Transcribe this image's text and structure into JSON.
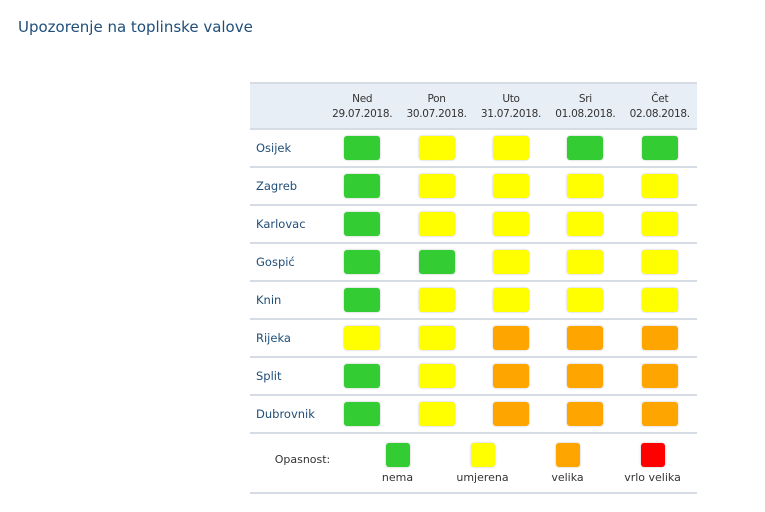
{
  "title": "Upozorenje na toplinske valove",
  "days": [
    {
      "name": "Ned",
      "date": "29.07.2018."
    },
    {
      "name": "Pon",
      "date": "30.07.2018."
    },
    {
      "name": "Uto",
      "date": "31.07.2018."
    },
    {
      "name": "Sri",
      "date": "01.08.2018."
    },
    {
      "name": "Čet",
      "date": "02.08.2018."
    }
  ],
  "colors": {
    "nema": "#33cc33",
    "umjerena": "#ffff00",
    "velika": "#ffa500",
    "vrlo_velika": "#ff0000"
  },
  "rows": [
    {
      "city": "Osijek",
      "levels": [
        "nema",
        "umjerena",
        "umjerena",
        "nema",
        "nema"
      ]
    },
    {
      "city": "Zagreb",
      "levels": [
        "nema",
        "umjerena",
        "umjerena",
        "umjerena",
        "umjerena"
      ]
    },
    {
      "city": "Karlovac",
      "levels": [
        "nema",
        "umjerena",
        "umjerena",
        "umjerena",
        "umjerena"
      ]
    },
    {
      "city": "Gospić",
      "levels": [
        "nema",
        "nema",
        "umjerena",
        "umjerena",
        "umjerena"
      ]
    },
    {
      "city": "Knin",
      "levels": [
        "nema",
        "umjerena",
        "umjerena",
        "umjerena",
        "umjerena"
      ]
    },
    {
      "city": "Rijeka",
      "levels": [
        "umjerena",
        "umjerena",
        "velika",
        "velika",
        "velika"
      ]
    },
    {
      "city": "Split",
      "levels": [
        "nema",
        "umjerena",
        "velika",
        "velika",
        "velika"
      ]
    },
    {
      "city": "Dubrovnik",
      "levels": [
        "nema",
        "umjerena",
        "velika",
        "velika",
        "velika"
      ]
    }
  ],
  "legend": {
    "label": "Opasnost:",
    "items": [
      {
        "key": "nema",
        "label": "nema"
      },
      {
        "key": "umjerena",
        "label": "umjerena"
      },
      {
        "key": "velika",
        "label": "velika"
      },
      {
        "key": "vrlo_velika",
        "label": "vrlo velika"
      }
    ]
  }
}
